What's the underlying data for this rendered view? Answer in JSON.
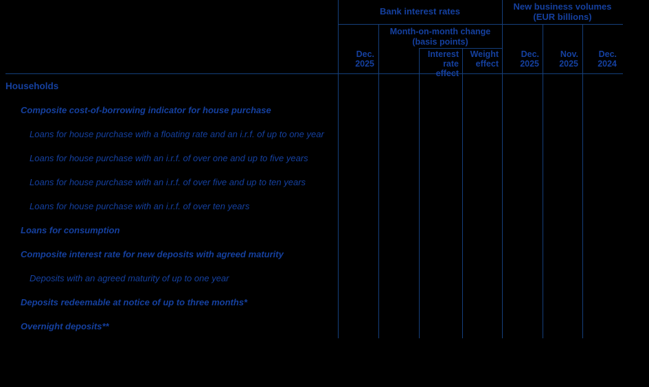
{
  "colors": {
    "background": "#000000",
    "text_blue": "#15409f",
    "line_blue": "#15407e"
  },
  "header": {
    "bank_interest_rates": "Bank interest rates",
    "new_business_volumes": {
      "line1": "New business volumes",
      "line2": "(EUR billions)"
    },
    "mom_change": {
      "line1": "Month-on-month change",
      "line2": "(basis points)"
    },
    "columns": {
      "rates_dec_2025": {
        "line1": "Dec.",
        "line2": "2025"
      },
      "interest_rate_effect": {
        "line1": "Interest",
        "line2": "rate effect"
      },
      "weight_effect": {
        "line1": "Weight",
        "line2": "effect"
      },
      "volumes_dec_2025": {
        "line1": "Dec.",
        "line2": "2025"
      },
      "volumes_nov_2025": {
        "line1": "Nov.",
        "line2": "2025"
      },
      "volumes_dec_2024": {
        "line1": "Dec.",
        "line2": "2024"
      }
    }
  },
  "rows": [
    {
      "label": "Households",
      "level": 0
    },
    {
      "label": "Composite cost-of-borrowing indicator for house purchase",
      "level": 1
    },
    {
      "label": "Loans for house purchase with a floating rate and an i.r.f. of up to one year",
      "level": 2
    },
    {
      "label": "Loans for house purchase with an i.r.f. of over one and up to five years",
      "level": 2
    },
    {
      "label": "Loans for house purchase with an i.r.f. of over five and up to ten years",
      "level": 2
    },
    {
      "label": "Loans for house purchase with an i.r.f. of over ten years",
      "level": 2
    },
    {
      "label": "Loans for consumption",
      "level": 1
    },
    {
      "label": "Composite interest rate for new deposits with agreed maturity",
      "level": 1
    },
    {
      "label": "Deposits with an agreed maturity of up to one year",
      "level": 2
    },
    {
      "label": "Deposits redeemable at notice of up to three months*",
      "level": 1
    },
    {
      "label": "Overnight deposits**",
      "level": 1
    }
  ]
}
